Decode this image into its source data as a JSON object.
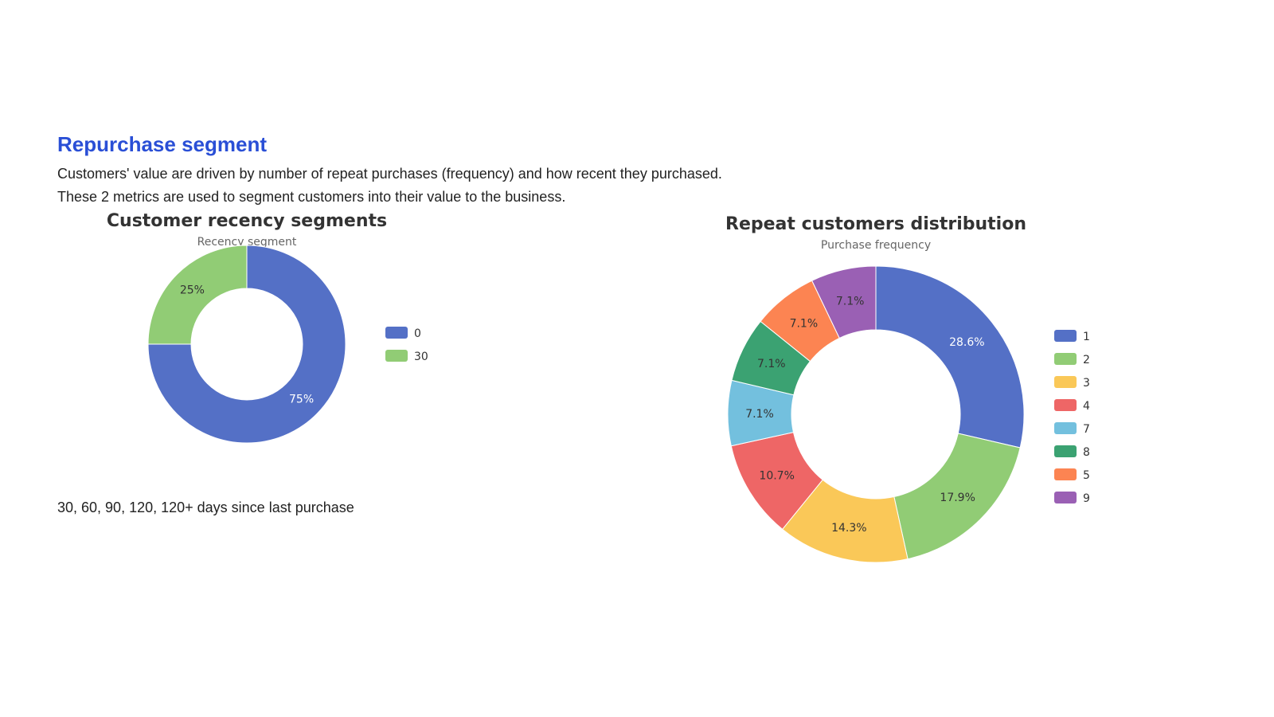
{
  "section": {
    "title": "Repurchase segment",
    "desc_line1": "Customers' value are driven by number of repeat purchases (frequency) and how recent they purchased.",
    "desc_line2": "These 2 metrics are used to segment customers into their value to the business.",
    "note": "30, 60, 90, 120, 120+ days since last purchase"
  },
  "chart_data": [
    {
      "type": "pie",
      "title": "Customer recency segments",
      "subtitle": "Recency segment",
      "legend_position": "right",
      "categories": [
        "0",
        "30"
      ],
      "values": [
        75,
        25
      ],
      "labels": [
        "75%",
        "25%"
      ],
      "colors": [
        "#5470c6",
        "#91cc75"
      ]
    },
    {
      "type": "pie",
      "title": "Repeat customers distribution",
      "subtitle": "Purchase frequency",
      "legend_position": "right",
      "categories": [
        "1",
        "2",
        "3",
        "4",
        "7",
        "8",
        "5",
        "9"
      ],
      "values": [
        28.6,
        17.9,
        14.3,
        10.7,
        7.1,
        7.1,
        7.1,
        7.1
      ],
      "labels": [
        "28.6%",
        "17.9%",
        "14.3%",
        "10.7%",
        "7.1%",
        "7.1%",
        "7.1%",
        "7.1%"
      ],
      "colors": [
        "#5470c6",
        "#91cc75",
        "#fac858",
        "#ee6666",
        "#73c0de",
        "#3ba272",
        "#fc8452",
        "#9a60b4"
      ]
    }
  ]
}
